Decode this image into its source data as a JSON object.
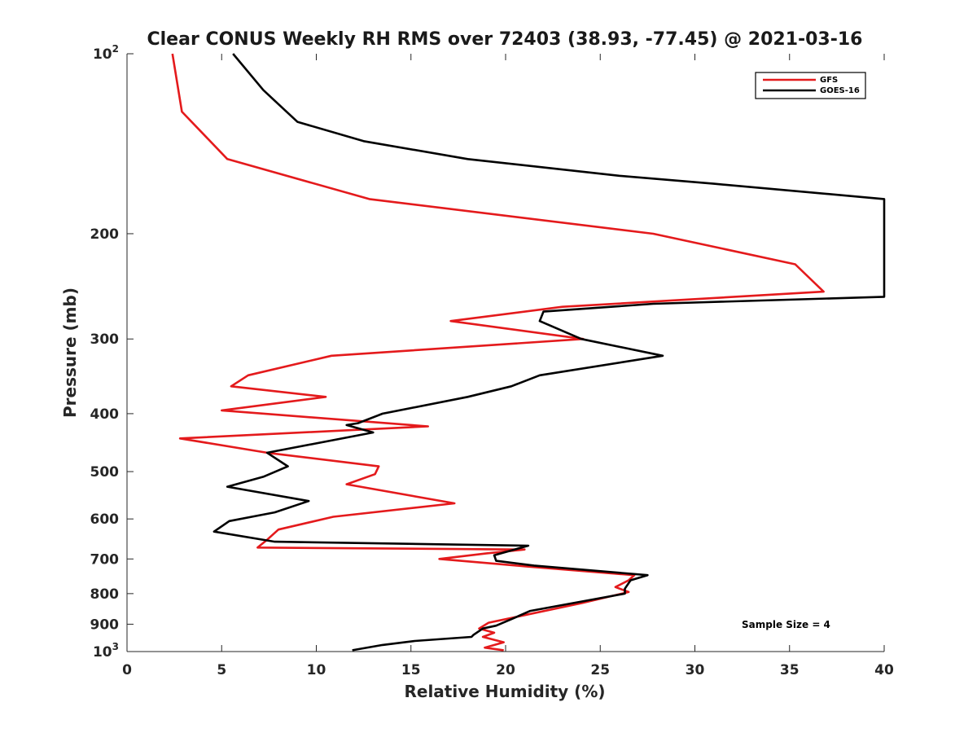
{
  "chart_data": {
    "type": "line",
    "title": "Clear CONUS Weekly RH RMS over 72403 (38.93, -77.45) @ 2021-03-16",
    "xlabel": "Relative Humidity (%)",
    "ylabel": "Pressure (mb)",
    "xlim": [
      0,
      40
    ],
    "ylim": [
      100,
      1000
    ],
    "y_scale": "log",
    "y_reversed": true,
    "x_ticks": [
      0,
      5,
      10,
      15,
      20,
      25,
      30,
      35,
      40
    ],
    "x_tick_labels": [
      "0",
      "5",
      "10",
      "15",
      "20",
      "25",
      "30",
      "35",
      "40"
    ],
    "y_ticks": [
      100,
      200,
      300,
      400,
      500,
      600,
      700,
      800,
      900,
      1000
    ],
    "y_tick_labels": [
      {
        "value": 100,
        "base": "10",
        "exp": "2"
      },
      {
        "value": 200,
        "base": "200",
        "exp": ""
      },
      {
        "value": 300,
        "base": "300",
        "exp": ""
      },
      {
        "value": 400,
        "base": "400",
        "exp": ""
      },
      {
        "value": 500,
        "base": "500",
        "exp": ""
      },
      {
        "value": 600,
        "base": "600",
        "exp": ""
      },
      {
        "value": 700,
        "base": "700",
        "exp": ""
      },
      {
        "value": 800,
        "base": "800",
        "exp": ""
      },
      {
        "value": 900,
        "base": "900",
        "exp": ""
      },
      {
        "value": 1000,
        "base": "10",
        "exp": "3"
      }
    ],
    "grid": false,
    "legend": "top-right",
    "annotation": "Sample Size = 4",
    "series": [
      {
        "name": "GFS",
        "color": "#e41a1c",
        "points": [
          [
            2.4,
            100
          ],
          [
            2.9,
            125
          ],
          [
            5.3,
            150
          ],
          [
            12.8,
            175
          ],
          [
            27.8,
            200
          ],
          [
            35.3,
            225
          ],
          [
            36.8,
            250
          ],
          [
            23.0,
            265
          ],
          [
            17.1,
            280
          ],
          [
            24.1,
            300
          ],
          [
            10.8,
            320
          ],
          [
            6.4,
            345
          ],
          [
            5.5,
            360
          ],
          [
            10.5,
            375
          ],
          [
            5.0,
            395
          ],
          [
            15.9,
            420
          ],
          [
            2.8,
            440
          ],
          [
            7.4,
            465
          ],
          [
            13.3,
            490
          ],
          [
            13.1,
            505
          ],
          [
            11.6,
            525
          ],
          [
            17.3,
            565
          ],
          [
            10.9,
            595
          ],
          [
            8.0,
            625
          ],
          [
            7.4,
            650
          ],
          [
            6.9,
            670
          ],
          [
            21.0,
            675
          ],
          [
            19.0,
            685
          ],
          [
            16.5,
            700
          ],
          [
            21.0,
            720
          ],
          [
            26.8,
            745
          ],
          [
            26.5,
            760
          ],
          [
            25.8,
            780
          ],
          [
            26.5,
            795
          ],
          [
            24.0,
            830
          ],
          [
            19.1,
            895
          ],
          [
            18.6,
            915
          ],
          [
            19.4,
            930
          ],
          [
            18.8,
            945
          ],
          [
            19.9,
            965
          ],
          [
            18.9,
            985
          ],
          [
            19.9,
            995
          ]
        ]
      },
      {
        "name": "GOES-16",
        "color": "#000000",
        "points": [
          [
            5.6,
            100
          ],
          [
            7.2,
            115
          ],
          [
            9.0,
            130
          ],
          [
            12.5,
            140
          ],
          [
            18.0,
            150
          ],
          [
            26.0,
            160
          ],
          [
            31.0,
            165
          ],
          [
            40.0,
            175
          ],
          [
            40.0,
            255
          ],
          [
            27.8,
            262
          ],
          [
            22.0,
            270
          ],
          [
            21.8,
            280
          ],
          [
            24.0,
            300
          ],
          [
            28.3,
            320
          ],
          [
            21.8,
            345
          ],
          [
            20.3,
            360
          ],
          [
            18.0,
            375
          ],
          [
            13.5,
            400
          ],
          [
            12.2,
            415
          ],
          [
            11.6,
            418
          ],
          [
            13.0,
            430
          ],
          [
            7.4,
            465
          ],
          [
            8.5,
            490
          ],
          [
            7.2,
            510
          ],
          [
            5.3,
            530
          ],
          [
            9.6,
            560
          ],
          [
            7.8,
            585
          ],
          [
            5.4,
            605
          ],
          [
            4.6,
            630
          ],
          [
            7.8,
            655
          ],
          [
            21.2,
            665
          ],
          [
            19.4,
            690
          ],
          [
            19.5,
            705
          ],
          [
            21.5,
            718
          ],
          [
            27.5,
            745
          ],
          [
            26.6,
            760
          ],
          [
            26.3,
            785
          ],
          [
            26.3,
            800
          ],
          [
            21.3,
            855
          ],
          [
            20.4,
            880
          ],
          [
            19.5,
            905
          ],
          [
            18.8,
            915
          ],
          [
            18.3,
            938
          ],
          [
            18.2,
            945
          ],
          [
            15.2,
            960
          ],
          [
            13.5,
            975
          ],
          [
            11.9,
            995
          ]
        ]
      }
    ]
  }
}
